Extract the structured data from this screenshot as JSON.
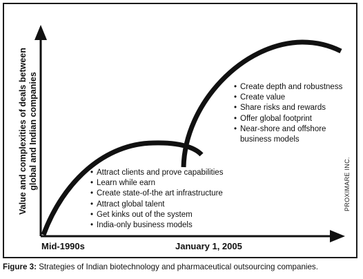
{
  "y_axis_label": {
    "line1": "Value and complexities of deals between",
    "line2": "global and Indian companies"
  },
  "x_axis_ticks": [
    "Mid-1990s",
    "January 1, 2005"
  ],
  "phase1": {
    "bullets": [
      "Attract clients and prove capabilities",
      "Learn while earn",
      "Create state-of-the art infrastructure",
      "Attract global talent",
      "Get kinks out of the system",
      "India-only business models"
    ]
  },
  "phase2": {
    "bullets": [
      "Create depth and robustness",
      "Create value",
      "Share risks and rewards",
      "Offer global footprint",
      "Near-shore and offshore",
      "business models"
    ]
  },
  "credit": "PROXIMARE INC.",
  "caption": {
    "label": "Figure 3:",
    "text": " Strategies of Indian biotechnology and pharmaceutical outsourcing companies."
  },
  "colors": {
    "ink": "#111111",
    "border": "#1a1a1a"
  }
}
